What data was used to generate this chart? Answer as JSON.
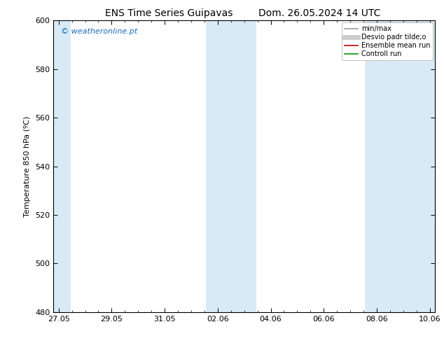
{
  "title_left": "ENS Time Series Guipavas",
  "title_right": "Dom. 26.05.2024 14 UTC",
  "ylabel": "Temperature 850 hPa (ºC)",
  "ylim": [
    480,
    600
  ],
  "yticks": [
    480,
    500,
    520,
    540,
    560,
    580,
    600
  ],
  "xtick_labels": [
    "27.05",
    "29.05",
    "31.05",
    "02.06",
    "04.06",
    "06.06",
    "08.06",
    "10.06"
  ],
  "xtick_positions": [
    0,
    2,
    4,
    6,
    8,
    10,
    12,
    14
  ],
  "xlim": [
    -0.2,
    14.2
  ],
  "watermark": "© weatheronline.pt",
  "watermark_color": "#1a6bbf",
  "background_color": "#ffffff",
  "shaded_band_color": "#d8eaf6",
  "shaded_col_ranges": [
    [
      -0.2,
      0.45
    ],
    [
      5.55,
      7.45
    ],
    [
      11.55,
      14.2
    ]
  ],
  "legend_labels": [
    "min/max",
    "Desvio padr tilde;o",
    "Ensemble mean run",
    "Controll run"
  ],
  "legend_colors": [
    "#999999",
    "#cccccc",
    "#cc0000",
    "#009900"
  ],
  "legend_lws": [
    1.2,
    5,
    1.2,
    1.2
  ],
  "fig_width": 6.34,
  "fig_height": 4.9,
  "dpi": 100
}
